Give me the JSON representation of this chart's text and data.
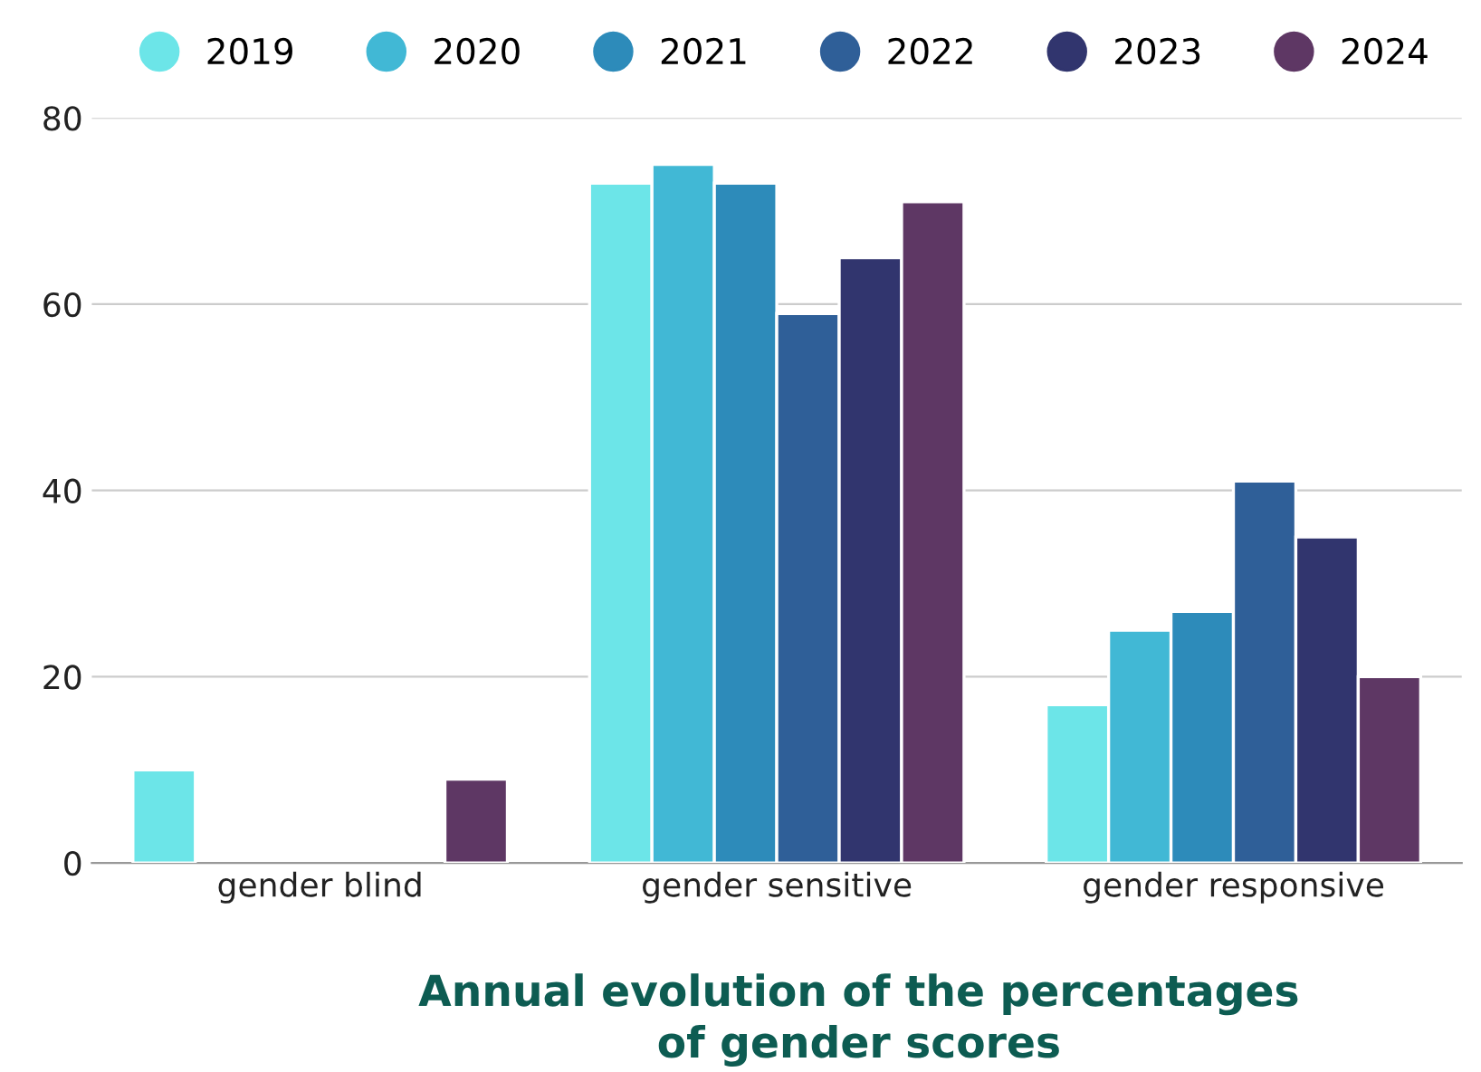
{
  "chart_data": {
    "type": "bar",
    "title": "Annual evolution of the percentages\nof gender scores",
    "categories": [
      "gender blind",
      "gender sensitive",
      "gender responsive"
    ],
    "series": [
      {
        "name": "2019",
        "color": "#6ce5e8",
        "values": [
          10,
          73,
          17
        ]
      },
      {
        "name": "2020",
        "color": "#41b8d5",
        "values": [
          0,
          75,
          25
        ]
      },
      {
        "name": "2021",
        "color": "#2d8bba",
        "values": [
          0,
          73,
          27
        ]
      },
      {
        "name": "2022",
        "color": "#2f5f98",
        "values": [
          0,
          59,
          41
        ]
      },
      {
        "name": "2023",
        "color": "#31356e",
        "values": [
          0,
          65,
          35
        ]
      },
      {
        "name": "2024",
        "color": "#5e3764",
        "values": [
          9,
          71,
          20
        ]
      }
    ],
    "ylim": [
      0,
      80
    ],
    "yticks": [
      0,
      20,
      40,
      60,
      80
    ],
    "grid": "y",
    "legend": "top"
  }
}
